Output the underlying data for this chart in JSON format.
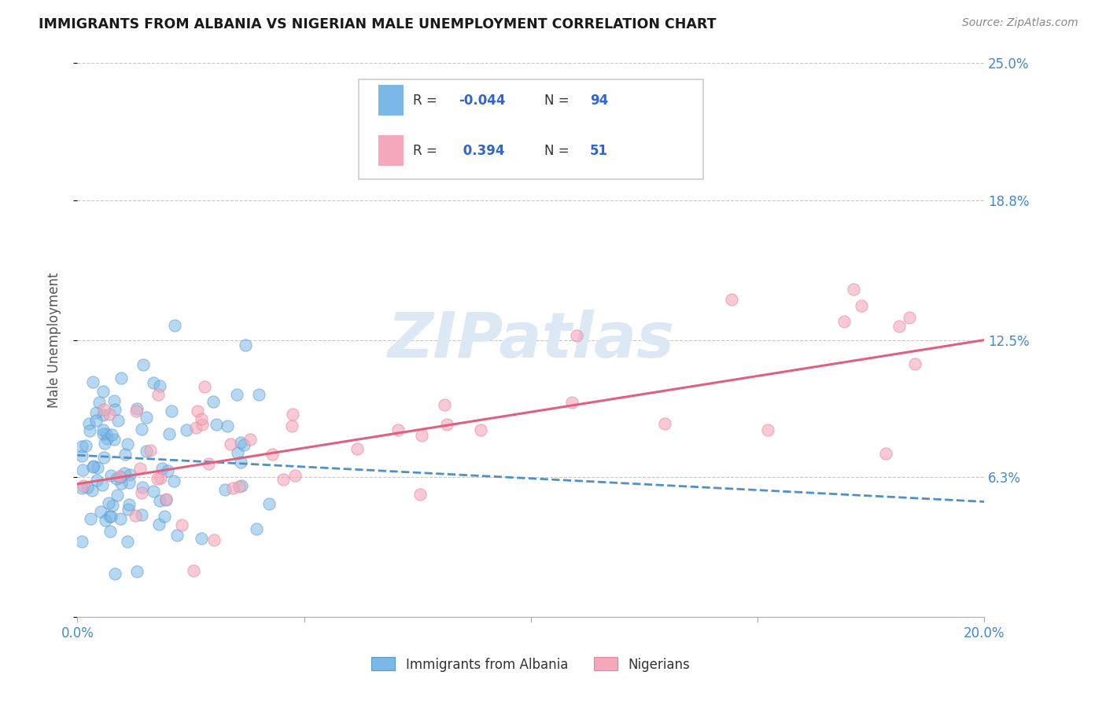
{
  "title": "IMMIGRANTS FROM ALBANIA VS NIGERIAN MALE UNEMPLOYMENT CORRELATION CHART",
  "source": "Source: ZipAtlas.com",
  "ylabel": "Male Unemployment",
  "xlim": [
    0.0,
    0.2
  ],
  "ylim": [
    0.0,
    0.25
  ],
  "ytick_vals": [
    0.0,
    0.063,
    0.125,
    0.188,
    0.25
  ],
  "ytick_labels": [
    "",
    "6.3%",
    "12.5%",
    "18.8%",
    "25.0%"
  ],
  "albania_color": "#7ab8e8",
  "albania_edge_color": "#5a98c8",
  "nigeria_color": "#f5a8bc",
  "nigeria_edge_color": "#e08898",
  "albania_line_color": "#5090c8",
  "nigeria_line_color": "#e06080",
  "background_color": "#ffffff",
  "grid_color": "#c8c8c8",
  "axis_label_color": "#4488cc",
  "tick_color": "#888888",
  "watermark_color": "#dde8f5",
  "watermark": "ZIPatlas",
  "legend_label1": "Immigrants from Albania",
  "legend_label2": "Nigerians",
  "albania_R": -0.044,
  "albania_N": 94,
  "nigeria_R": 0.394,
  "nigeria_N": 51,
  "alb_trend_x0": 0.0,
  "alb_trend_y0": 0.073,
  "alb_trend_x1": 0.2,
  "alb_trend_y1": 0.052,
  "nig_trend_x0": 0.0,
  "nig_trend_y0": 0.06,
  "nig_trend_x1": 0.2,
  "nig_trend_y1": 0.125
}
